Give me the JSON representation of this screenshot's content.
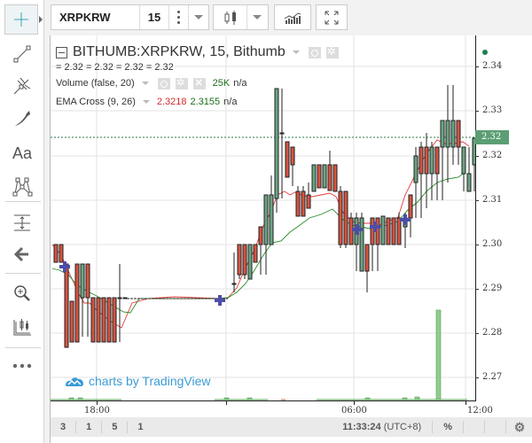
{
  "toolbar": {
    "symbol": "XRPKRW",
    "interval": "15",
    "chart_type_icon": "candlestick-icon",
    "indicators_icon": "indicators-icon",
    "fullscreen_icon": "fullscreen-icon"
  },
  "left_tools": [
    {
      "name": "crosshair",
      "icon": "crosshair-icon",
      "active": true
    },
    {
      "name": "trend-line",
      "icon": "trend-line-icon"
    },
    {
      "name": "pitchfork",
      "icon": "pitchfork-icon"
    },
    {
      "name": "brush",
      "icon": "brush-icon"
    },
    {
      "name": "text",
      "icon": "text-icon",
      "label": "Aa"
    },
    {
      "name": "pattern",
      "icon": "pattern-icon"
    },
    {
      "name": "measure",
      "icon": "measure-icon"
    },
    {
      "name": "back",
      "icon": "arrow-left-icon"
    },
    {
      "name": "zoom-in",
      "icon": "zoom-in-icon"
    },
    {
      "name": "long-short",
      "icon": "ruler-candles-icon"
    },
    {
      "name": "more",
      "icon": "more-icon"
    }
  ],
  "legend": {
    "title": "BITHUMB:XRPKRW, 15, Bithumb",
    "ohlc": "= 2.32 = 2.32 = 2.32 = 2.32",
    "volume_label": "Volume (false, 20)",
    "volume_value": "25K",
    "volume_na": "n/a",
    "ema_label": "EMA Cross (9, 26)",
    "ema_fast": "2.3218",
    "ema_slow": "2.3155",
    "ema_na": "n/a"
  },
  "watermark": "charts by TradingView",
  "price_axis": {
    "labels": [
      "2.34",
      "2.33",
      "2.32",
      "2.31",
      "2.30",
      "2.29",
      "2.28",
      "2.27"
    ],
    "current_price": "2.32"
  },
  "time_axis": {
    "labels": [
      "18:00",
      "06:00",
      "12:00"
    ]
  },
  "bottom_bar": {
    "ranges": [
      "3",
      "1",
      "5",
      "1"
    ],
    "clock": "11:33:24",
    "timezone": "(UTC+8)",
    "percent": "%"
  },
  "colors": {
    "up": "#6ba583",
    "down": "#d75442",
    "ema_fast": "#e33b3b",
    "ema_slow": "#2a8a2a",
    "price_tag": "#5b9e73",
    "watermark": "#3c9bd6",
    "cross_marker": "#4b4ea8"
  },
  "chart_data": {
    "type": "candlestick",
    "title": "BITHUMB:XRPKRW, 15, Bithumb",
    "ylim": [
      2.265,
      2.345
    ],
    "yticks": [
      2.27,
      2.28,
      2.29,
      2.3,
      2.31,
      2.32,
      2.33,
      2.34
    ],
    "xticks": [
      "18:00",
      "06:00",
      "12:00"
    ],
    "last_price": 2.32,
    "indicators": {
      "ema_fast": 2.3218,
      "ema_slow": 2.3155,
      "volume_last": "25K"
    }
  }
}
